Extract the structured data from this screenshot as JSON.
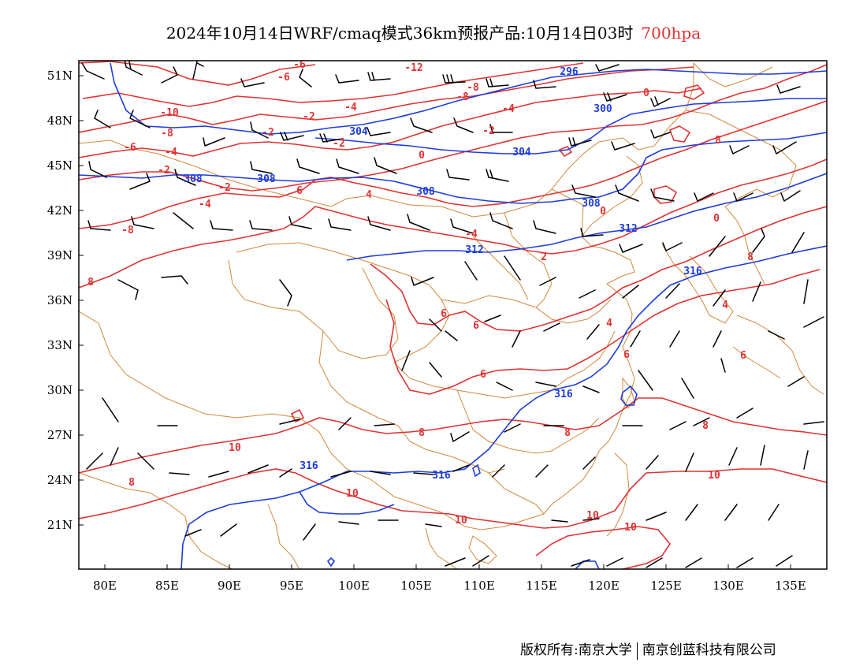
{
  "header": {
    "title": "2024年10月14日WRF/cmaq模式36km预报产品:10月14日03时",
    "level": "700hpa"
  },
  "colors": {
    "temperature": "#e03232",
    "geopotential": "#1e3cdc",
    "border": "#d2883a",
    "wind": "#000000"
  },
  "axes": {
    "lon_ticks": [
      "80E",
      "85E",
      "90E",
      "95E",
      "100E",
      "105E",
      "110E",
      "115E",
      "120E",
      "125E",
      "130E",
      "135E"
    ],
    "lat_ticks": [
      "51N",
      "48N",
      "45N",
      "42N",
      "39N",
      "36N",
      "33N",
      "30N",
      "27N",
      "24N",
      "21N"
    ]
  },
  "contour_labels": {
    "temperature": [
      "-6",
      "-6",
      "-12",
      "-8",
      "-8",
      "-10",
      "-4",
      "-2",
      "-8",
      "-4",
      "-2",
      "-2",
      "0",
      "-2",
      "0",
      "-2",
      "-4",
      "4",
      "6",
      "-6",
      "-8",
      "0",
      "-2",
      "0",
      "-4",
      "2",
      "-4",
      "6",
      "6",
      "6",
      "4",
      "4",
      "6",
      "8",
      "6",
      "8",
      "10",
      "8",
      "10",
      "10",
      "10",
      "10",
      "8",
      "10",
      "8",
      "8",
      "8"
    ],
    "geopotential": [
      "296",
      "300",
      "304",
      "304",
      "308",
      "308",
      "308",
      "308",
      "312",
      "312",
      "316",
      "316",
      "316",
      "316"
    ]
  },
  "copyright": {
    "left": "版权所有:南京大学",
    "right": "南京创蓝科技有限公司"
  }
}
